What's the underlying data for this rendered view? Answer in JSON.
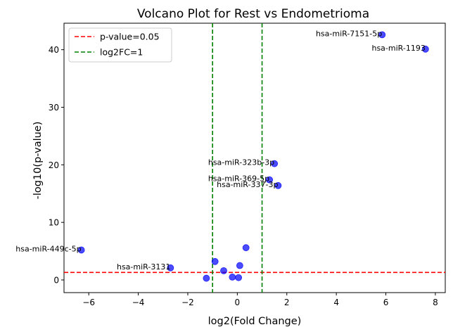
{
  "chart_data": {
    "type": "scatter",
    "title": "Volcano Plot for Rest vs Endometrioma",
    "xlabel": "log2(Fold Change)",
    "ylabel": "-log10(p-value)",
    "xlim": [
      -7,
      8.4
    ],
    "ylim": [
      -2.2,
      44.6
    ],
    "xticks": [
      -6,
      -4,
      -2,
      0,
      2,
      4,
      6,
      8
    ],
    "yticks": [
      0,
      10,
      20,
      30,
      40
    ],
    "grid": false,
    "legend_position": "top-left",
    "legend": [
      {
        "label": "p-value=0.05",
        "color": "#ff0000",
        "style": "dashed"
      },
      {
        "label": "log2FC=1",
        "color": "#008000",
        "style": "dashed"
      }
    ],
    "reference_lines": {
      "horizontal": [
        1.3
      ],
      "vertical": [
        -1,
        1
      ]
    },
    "point_color": "#0000ff",
    "points": [
      {
        "x": 5.85,
        "y": 42.6,
        "label": "hsa-miR-7151-5p"
      },
      {
        "x": 7.6,
        "y": 40.1,
        "label": "hsa-miR-1193"
      },
      {
        "x": 1.5,
        "y": 20.2,
        "label": "hsa-miR-323b-3p"
      },
      {
        "x": 1.3,
        "y": 17.4,
        "label": "hsa-miR-369-5p"
      },
      {
        "x": 1.65,
        "y": 16.4,
        "label": "hsa-miR-337-3p"
      },
      {
        "x": -6.3,
        "y": 5.2,
        "label": "hsa-miR-449c-5p"
      },
      {
        "x": -2.7,
        "y": 2.1,
        "label": "hsa-miR-3131"
      },
      {
        "x": 0.35,
        "y": 5.6,
        "label": ""
      },
      {
        "x": -0.9,
        "y": 3.2,
        "label": ""
      },
      {
        "x": -0.55,
        "y": 1.6,
        "label": ""
      },
      {
        "x": 0.1,
        "y": 2.5,
        "label": ""
      },
      {
        "x": -0.2,
        "y": 0.5,
        "label": ""
      },
      {
        "x": 0.05,
        "y": 0.4,
        "label": ""
      },
      {
        "x": -1.25,
        "y": 0.3,
        "label": ""
      }
    ]
  }
}
